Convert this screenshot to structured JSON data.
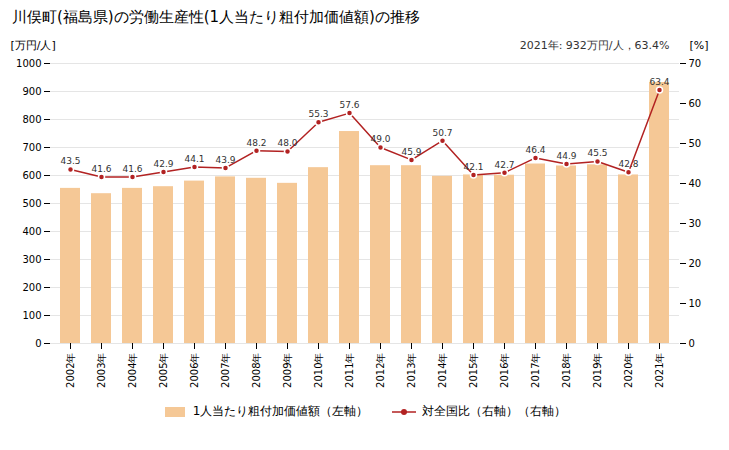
{
  "chart_data": {
    "type": "bar",
    "title": "川俣町(福島県)の労働生産性(1人当たり粗付加価値額)の推移",
    "annotation": "2021年: 932万円/人，63.4%",
    "ylabel": "[万円/人]",
    "y2label": "[%]",
    "categories": [
      "2002年",
      "2003年",
      "2004年",
      "2005年",
      "2006年",
      "2007年",
      "2008年",
      "2009年",
      "2010年",
      "2011年",
      "2012年",
      "2013年",
      "2014年",
      "2015年",
      "2016年",
      "2017年",
      "2018年",
      "2019年",
      "2020年",
      "2021年"
    ],
    "series": [
      {
        "name": "1人当たり粗付加価値額（左軸）",
        "type": "bar",
        "color": "#F5C896",
        "values": [
          554,
          535,
          554,
          560,
          580,
          595,
          590,
          572,
          628,
          757,
          635,
          635,
          597,
          602,
          601,
          641,
          634,
          638,
          602,
          932
        ]
      },
      {
        "name": "対全国比（右軸）（右軸）",
        "type": "line",
        "color": "#B22222",
        "marker": "circle",
        "axis": "y2",
        "data_labels": true,
        "values": [
          43.5,
          41.6,
          41.6,
          42.9,
          44.1,
          43.9,
          48.2,
          48.0,
          55.3,
          57.6,
          49.0,
          45.9,
          50.7,
          42.1,
          42.7,
          46.4,
          44.9,
          45.5,
          42.8,
          63.4
        ],
        "value_labels": [
          "43.5",
          "41.6",
          "41.6",
          "42.9",
          "44.1",
          "43.9",
          "48.2",
          "48.0",
          "55.3",
          "57.6",
          "49.0",
          "45.9",
          "50.7",
          "42.1",
          "42.7",
          "46.4",
          "44.9",
          "45.5",
          "42.8",
          "63.4"
        ]
      }
    ],
    "ylim": [
      0,
      1000
    ],
    "yticks": [
      0,
      100,
      200,
      300,
      400,
      500,
      600,
      700,
      800,
      900,
      1000
    ],
    "y2lim": [
      0,
      70
    ],
    "y2ticks": [
      0,
      10,
      20,
      30,
      40,
      50,
      60,
      70
    ],
    "grid": true,
    "legend": "bottom"
  }
}
